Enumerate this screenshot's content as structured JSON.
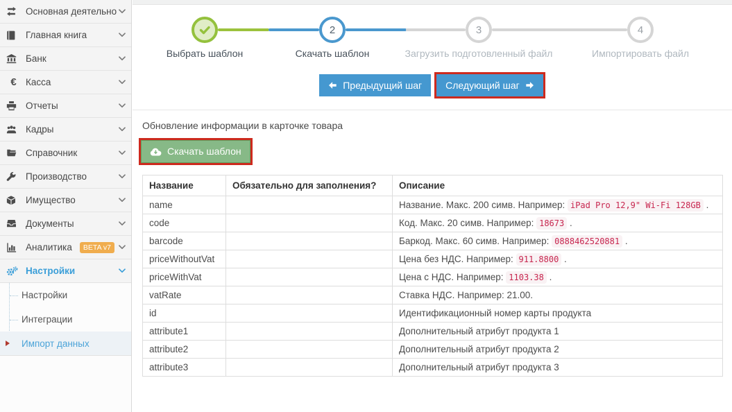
{
  "sidebar": {
    "items": [
      {
        "label": "Основная деятельность",
        "icon": "exchange-icon"
      },
      {
        "label": "Главная книга",
        "icon": "book-icon"
      },
      {
        "label": "Банк",
        "icon": "bank-icon"
      },
      {
        "label": "Касса",
        "icon": "euro-icon"
      },
      {
        "label": "Отчеты",
        "icon": "printer-icon"
      },
      {
        "label": "Кадры",
        "icon": "users-icon"
      },
      {
        "label": "Справочник",
        "icon": "folder-icon"
      },
      {
        "label": "Производство",
        "icon": "wrench-icon"
      },
      {
        "label": "Имущество",
        "icon": "box-icon"
      },
      {
        "label": "Документы",
        "icon": "documents-icon"
      },
      {
        "label": "Аналитика",
        "icon": "analytics-icon",
        "badge": "BETA v7"
      },
      {
        "label": "Настройки",
        "icon": "settings-icon",
        "active": true
      }
    ],
    "submenu": [
      {
        "label": "Настройки"
      },
      {
        "label": "Интеграции"
      },
      {
        "label": "Импорт данных",
        "active": true
      }
    ]
  },
  "stepper": {
    "steps": [
      {
        "label": "Выбрать шаблон",
        "state": "done"
      },
      {
        "number": "2",
        "label": "Скачать шаблон",
        "state": "current"
      },
      {
        "number": "3",
        "label": "Загрузить подготовленный файл",
        "state": "future"
      },
      {
        "number": "4",
        "label": "Импортировать файл",
        "state": "future"
      }
    ]
  },
  "nav_buttons": {
    "prev": "Предыдущий шаг",
    "next": "Следующий шаг"
  },
  "content": {
    "section_title": "Обновление информации в карточке товара",
    "download_button": "Скачать шаблон"
  },
  "table": {
    "headers": [
      "Название",
      "Обязательно для заполнения?",
      "Описание"
    ],
    "rows": [
      {
        "name": "name",
        "required": "",
        "description": [
          {
            "t": "Название. Макс. 200 симв. Например: "
          },
          {
            "c": "iPad Pro 12,9\" Wi-Fi 128GB"
          },
          {
            "t": " ."
          }
        ]
      },
      {
        "name": "code",
        "required": "",
        "description": [
          {
            "t": "Код. Макс. 20 симв. Например: "
          },
          {
            "c": "18673"
          },
          {
            "t": " ."
          }
        ]
      },
      {
        "name": "barcode",
        "required": "",
        "description": [
          {
            "t": "Баркод. Макс. 60 симв. Например: "
          },
          {
            "c": "0888462520881"
          },
          {
            "t": " ."
          }
        ]
      },
      {
        "name": "priceWithoutVat",
        "required": "",
        "description": [
          {
            "t": "Цена без НДС. Например: "
          },
          {
            "c": "911.8800"
          },
          {
            "t": " ."
          }
        ]
      },
      {
        "name": "priceWithVat",
        "required": "",
        "description": [
          {
            "t": "Цена с НДС. Например: "
          },
          {
            "c": "1103.38"
          },
          {
            "t": " ."
          }
        ]
      },
      {
        "name": "vatRate",
        "required": "",
        "description": [
          {
            "t": "Ставка НДС. Например: 21.00."
          }
        ]
      },
      {
        "name": "id",
        "required": "",
        "description": [
          {
            "t": "Идентификационный номер карты продукта"
          }
        ]
      },
      {
        "name": "attribute1",
        "required": "",
        "description": [
          {
            "t": "Дополнительный атрибут продукта 1"
          }
        ]
      },
      {
        "name": "attribute2",
        "required": "",
        "description": [
          {
            "t": "Дополнительный атрибут продукта 2"
          }
        ]
      },
      {
        "name": "attribute3",
        "required": "",
        "description": [
          {
            "t": "Дополнительный атрибут продукта 3"
          }
        ]
      }
    ]
  },
  "colors": {
    "accent_blue": "#4598d0",
    "step_green": "#94c13d",
    "badge_orange": "#f0ad4e",
    "annotation_red": "#cd2a1e",
    "button_green": "#87b987",
    "code_pink": "#c7254e",
    "code_bg": "#f9f2f4"
  }
}
